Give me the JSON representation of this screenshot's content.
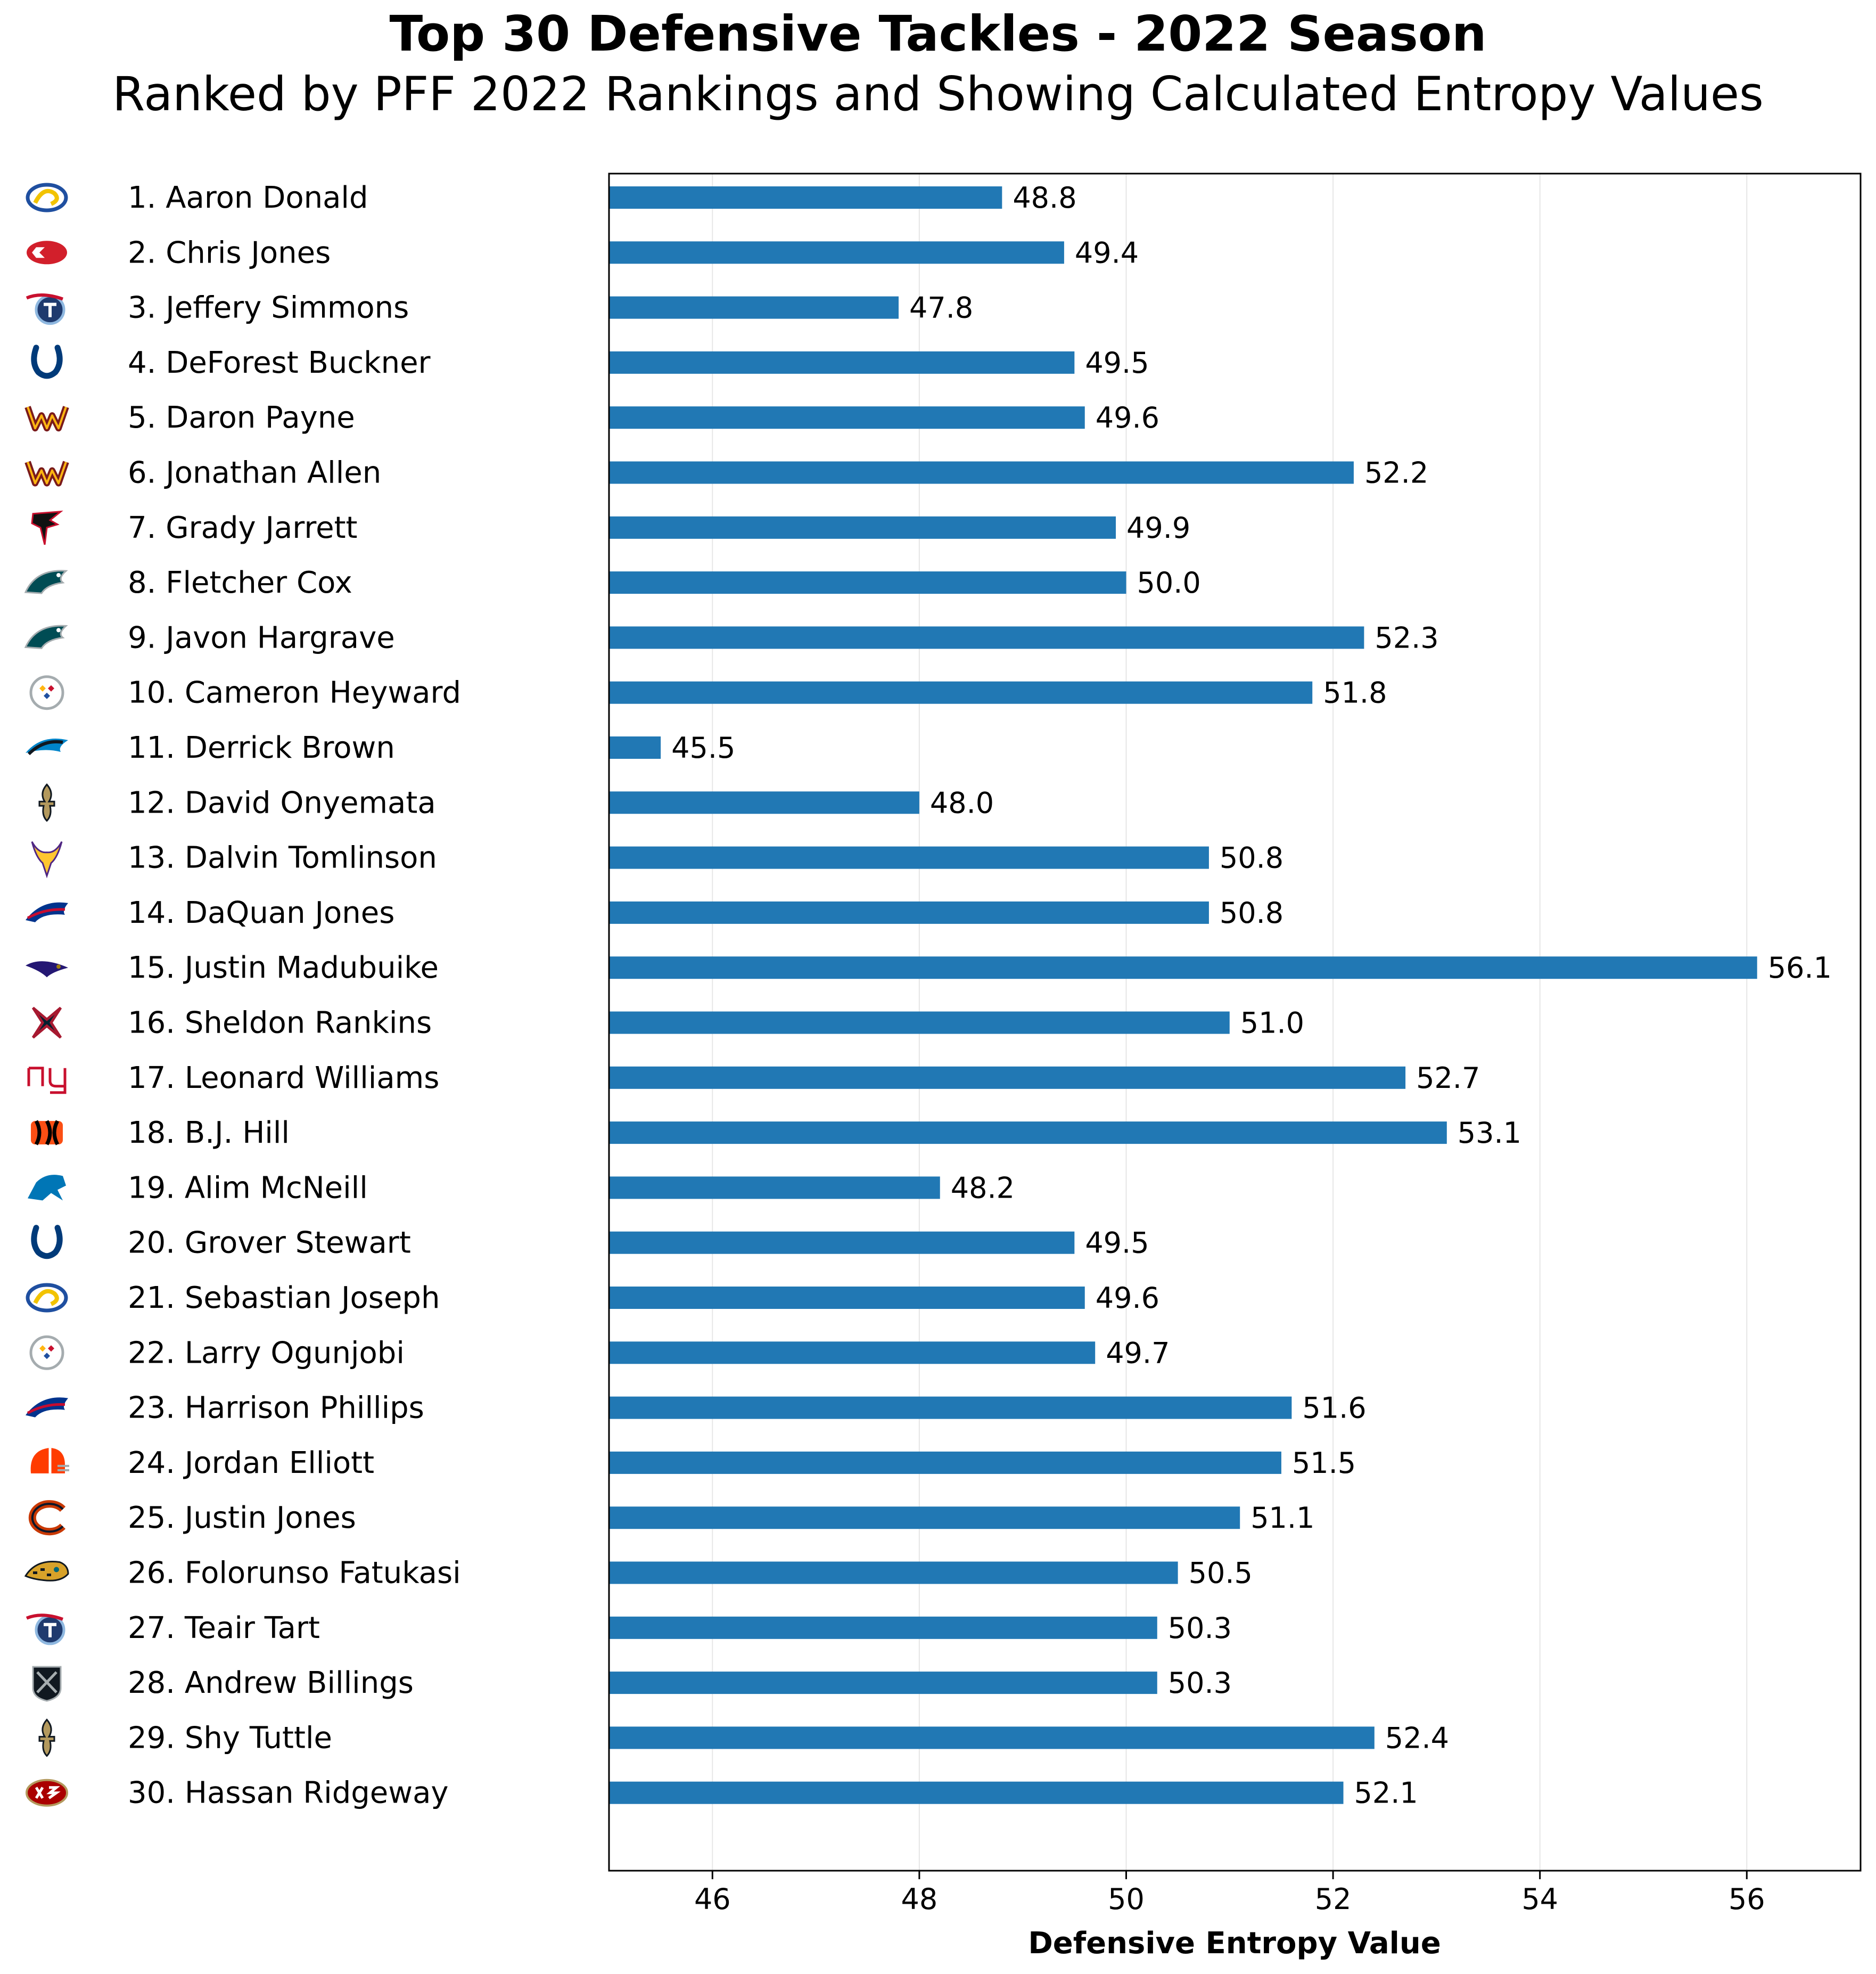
{
  "chart_data": {
    "type": "bar",
    "orientation": "horizontal",
    "title": "Top 30 Defensive Tackles - 2022 Season",
    "subtitle": "Ranked by PFF 2022 Rankings and Showing Calculated Entropy Values",
    "xlabel": "Defensive Entropy Value",
    "ylabel": "",
    "xlim": [
      45,
      57.1
    ],
    "xticks": [
      46,
      48,
      50,
      52,
      54,
      56
    ],
    "grid": "vertical",
    "bar_color": "#2178b4",
    "categories": [
      "1. Aaron Donald",
      "2. Chris Jones",
      "3. Jeffery Simmons",
      "4. DeForest Buckner",
      "5. Daron Payne",
      "6. Jonathan Allen",
      "7. Grady Jarrett",
      "8. Fletcher Cox",
      "9. Javon Hargrave",
      "10. Cameron Heyward",
      "11. Derrick Brown",
      "12. David Onyemata",
      "13. Dalvin Tomlinson",
      "14. DaQuan Jones",
      "15. Justin Madubuike",
      "16. Sheldon Rankins",
      "17. Leonard Williams",
      "18. B.J. Hill",
      "19. Alim McNeill",
      "20. Grover Stewart",
      "21. Sebastian Joseph",
      "22. Larry Ogunjobi",
      "23. Harrison Phillips",
      "24. Jordan Elliott",
      "25. Justin Jones",
      "26. Folorunso Fatukasi",
      "27. Teair Tart",
      "28. Andrew Billings",
      "29. Shy Tuttle",
      "30. Hassan Ridgeway"
    ],
    "values": [
      48.8,
      49.4,
      47.8,
      49.5,
      49.6,
      52.2,
      49.9,
      50.0,
      52.3,
      51.8,
      45.5,
      48.0,
      50.8,
      50.8,
      56.1,
      51.0,
      52.7,
      53.1,
      48.2,
      49.5,
      49.6,
      49.7,
      51.6,
      51.5,
      51.1,
      50.5,
      50.3,
      50.3,
      52.4,
      52.1
    ],
    "value_labels": [
      "48.8",
      "49.4",
      "47.8",
      "49.5",
      "49.6",
      "52.2",
      "49.9",
      "50.0",
      "52.3",
      "51.8",
      "45.5",
      "48.0",
      "50.8",
      "50.8",
      "56.1",
      "51.0",
      "52.7",
      "53.1",
      "48.2",
      "49.5",
      "49.6",
      "49.7",
      "51.6",
      "51.5",
      "51.1",
      "50.5",
      "50.3",
      "50.3",
      "52.4",
      "52.1"
    ],
    "team_logos": [
      "rams-logo-icon",
      "chiefs-logo-icon",
      "titans-logo-icon",
      "colts-logo-icon",
      "commanders-logo-icon",
      "commanders-logo-icon",
      "falcons-logo-icon",
      "eagles-logo-icon",
      "eagles-logo-icon",
      "steelers-logo-icon",
      "panthers-logo-icon",
      "saints-logo-icon",
      "vikings-logo-icon",
      "bills-logo-icon",
      "ravens-logo-icon",
      "texans-logo-icon",
      "giants-logo-icon",
      "bengals-logo-icon",
      "lions-logo-icon",
      "colts-logo-icon",
      "rams-logo-icon",
      "steelers-logo-icon",
      "bills-logo-icon",
      "browns-logo-icon",
      "bears-logo-icon",
      "jaguars-logo-icon",
      "titans-logo-icon",
      "raiders-logo-icon",
      "saints-logo-icon",
      "49ers-logo-icon"
    ]
  }
}
